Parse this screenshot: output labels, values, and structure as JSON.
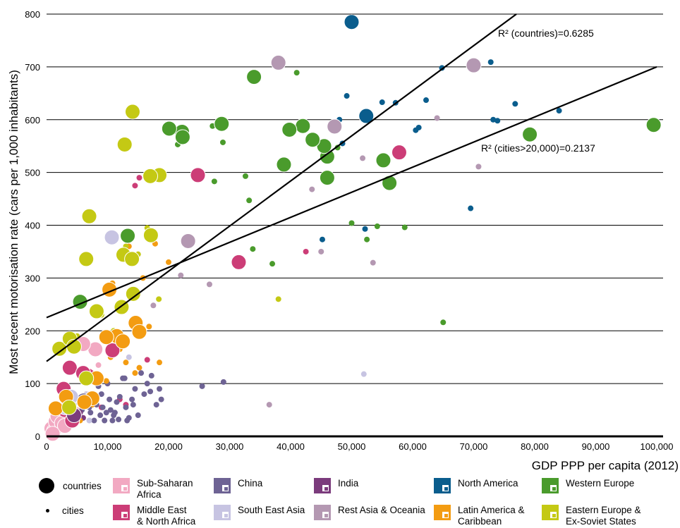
{
  "chart_data": {
    "type": "scatter",
    "xlabel": "GDP PPP per capita (2012)",
    "ylabel": "Most recent motorisation rate (cars per 1,000 inhabitants)",
    "xlim": [
      0,
      100000
    ],
    "ylim": [
      0,
      800
    ],
    "x_ticks": [
      "0",
      "10,000",
      "20,000",
      "30,000",
      "40,000",
      "50,000",
      "60,000",
      "70,000",
      "80,000",
      "90,000",
      "100,000"
    ],
    "y_ticks": [
      "0",
      "100",
      "200",
      "300",
      "400",
      "500",
      "600",
      "700",
      "800"
    ],
    "grid": "horizontal",
    "trendlines": [
      {
        "name": "countries",
        "label": "R² (countries)=0.6285",
        "points": [
          [
            0,
            142
          ],
          [
            77000,
            800
          ]
        ]
      },
      {
        "name": "cities",
        "label": "R² (cities>20,000)=0.2137",
        "points": [
          [
            0,
            225
          ],
          [
            100000,
            700
          ]
        ]
      }
    ],
    "series": [
      {
        "name": "Sub-Saharan Africa",
        "color": "#f2a9c2",
        "countries": [
          [
            800,
            15
          ],
          [
            1200,
            10
          ],
          [
            1500,
            28
          ],
          [
            1800,
            38
          ],
          [
            2500,
            25
          ],
          [
            8000,
            165
          ],
          [
            6000,
            175
          ],
          [
            3000,
            20
          ],
          [
            1000,
            5
          ]
        ],
        "cities": [
          [
            2000,
            30
          ],
          [
            3000,
            45
          ],
          [
            4000,
            35
          ],
          [
            5000,
            50
          ],
          [
            2500,
            15
          ],
          [
            6000,
            60
          ],
          [
            8500,
            135
          ],
          [
            7000,
            80
          ],
          [
            1500,
            8
          ],
          [
            3500,
            22
          ]
        ]
      },
      {
        "name": "Middle East & North Africa",
        "color": "#cc3d77",
        "countries": [
          [
            4000,
            177
          ],
          [
            3800,
            130
          ],
          [
            2800,
            90
          ],
          [
            3000,
            50
          ],
          [
            4200,
            30
          ],
          [
            6800,
            115
          ],
          [
            10800,
            163
          ],
          [
            24800,
            495
          ],
          [
            31500,
            330
          ],
          [
            57800,
            538
          ],
          [
            6000,
            120
          ]
        ],
        "cities": [
          [
            14500,
            475
          ],
          [
            15200,
            490
          ],
          [
            16500,
            145
          ],
          [
            42500,
            350
          ],
          [
            9000,
            55
          ],
          [
            13000,
            60
          ],
          [
            12000,
            70
          ]
        ]
      },
      {
        "name": "China",
        "color": "#6e6394",
        "countries": [
          [
            6100,
            68
          ]
        ],
        "cities": [
          [
            3200,
            40
          ],
          [
            4000,
            55
          ],
          [
            4500,
            62
          ],
          [
            5200,
            40
          ],
          [
            5800,
            50
          ],
          [
            6500,
            70
          ],
          [
            7200,
            45
          ],
          [
            7800,
            30
          ],
          [
            8200,
            60
          ],
          [
            9000,
            80
          ],
          [
            9500,
            30
          ],
          [
            10000,
            100
          ],
          [
            10500,
            50
          ],
          [
            11000,
            40
          ],
          [
            11500,
            65
          ],
          [
            12000,
            75
          ],
          [
            12500,
            110
          ],
          [
            13000,
            55
          ],
          [
            13500,
            35
          ],
          [
            14000,
            70
          ],
          [
            14500,
            90
          ],
          [
            15000,
            40
          ],
          [
            15500,
            120
          ],
          [
            16000,
            80
          ],
          [
            16500,
            100
          ],
          [
            17000,
            85
          ],
          [
            17200,
            115
          ],
          [
            18000,
            60
          ],
          [
            18500,
            90
          ],
          [
            18800,
            70
          ],
          [
            8500,
            95
          ],
          [
            9200,
            55
          ],
          [
            10800,
            30
          ],
          [
            11800,
            32
          ],
          [
            12800,
            110
          ],
          [
            25500,
            95
          ],
          [
            29000,
            103
          ],
          [
            3700,
            30
          ],
          [
            5500,
            35
          ],
          [
            7000,
            55
          ],
          [
            8800,
            40
          ],
          [
            9800,
            45
          ],
          [
            10300,
            70
          ],
          [
            11200,
            45
          ],
          [
            13200,
            30
          ],
          [
            14200,
            60
          ]
        ]
      },
      {
        "name": "India",
        "color": "#7b3b7c",
        "countries": [
          [
            4500,
            40
          ]
        ],
        "cities": [
          [
            4000,
            25
          ],
          [
            5000,
            30
          ],
          [
            5500,
            45
          ],
          [
            6000,
            35
          ]
        ]
      },
      {
        "name": "South East Asia",
        "color": "#c7c4e2",
        "countries": [
          [
            10700,
            377
          ],
          [
            4000,
            75
          ],
          [
            3000,
            55
          ]
        ],
        "cities": [
          [
            13500,
            150
          ],
          [
            6500,
            80
          ],
          [
            52000,
            118
          ],
          [
            7000,
            30
          ],
          [
            5000,
            65
          ]
        ]
      },
      {
        "name": "Rest Asia & Oceania",
        "color": "#b498b2",
        "countries": [
          [
            38000,
            708
          ],
          [
            70000,
            703
          ],
          [
            47200,
            587
          ],
          [
            23200,
            370
          ]
        ],
        "cities": [
          [
            26700,
            288
          ],
          [
            22000,
            305
          ],
          [
            17500,
            248
          ],
          [
            36500,
            60
          ],
          [
            43500,
            468
          ],
          [
            45000,
            350
          ],
          [
            51800,
            527
          ],
          [
            53500,
            329
          ],
          [
            64000,
            603
          ],
          [
            70800,
            511
          ],
          [
            13000,
            248
          ]
        ]
      },
      {
        "name": "Latin America & Caribbean",
        "color": "#f39c12",
        "countries": [
          [
            10300,
            278
          ],
          [
            14600,
            215
          ],
          [
            15200,
            198
          ],
          [
            11500,
            190
          ],
          [
            9800,
            188
          ],
          [
            8200,
            110
          ],
          [
            7500,
            72
          ],
          [
            6200,
            65
          ],
          [
            3200,
            75
          ],
          [
            1500,
            53
          ],
          [
            12500,
            180
          ]
        ],
        "cities": [
          [
            10800,
            290
          ],
          [
            13500,
            360
          ],
          [
            17800,
            365
          ],
          [
            20000,
            330
          ],
          [
            15800,
            300
          ],
          [
            16800,
            208
          ],
          [
            15200,
            130
          ],
          [
            18500,
            140
          ],
          [
            10500,
            150
          ],
          [
            12000,
            165
          ],
          [
            9800,
            105
          ],
          [
            7500,
            60
          ],
          [
            5500,
            30
          ],
          [
            14500,
            120
          ],
          [
            13000,
            140
          ]
        ]
      },
      {
        "name": "North America",
        "color": "#0a5d8d",
        "countries": [
          [
            50000,
            785
          ],
          [
            52400,
            607
          ]
        ],
        "cities": [
          [
            64800,
            698
          ],
          [
            72800,
            709
          ],
          [
            69500,
            432
          ],
          [
            76800,
            630
          ],
          [
            73200,
            600
          ],
          [
            84000,
            617
          ],
          [
            62200,
            637
          ],
          [
            60500,
            580
          ],
          [
            61000,
            585
          ],
          [
            57200,
            632
          ],
          [
            55000,
            633
          ],
          [
            49200,
            645
          ],
          [
            48000,
            600
          ],
          [
            48500,
            555
          ],
          [
            52200,
            393
          ],
          [
            45200,
            373
          ],
          [
            73900,
            598
          ]
        ]
      },
      {
        "name": "Western Europe",
        "color": "#4a9b2c",
        "countries": [
          [
            99500,
            590
          ],
          [
            79200,
            572
          ],
          [
            56200,
            480
          ],
          [
            55200,
            523
          ],
          [
            46000,
            490
          ],
          [
            46000,
            530
          ],
          [
            45500,
            550
          ],
          [
            43600,
            562
          ],
          [
            42000,
            588
          ],
          [
            39800,
            581
          ],
          [
            38900,
            515
          ],
          [
            34000,
            681
          ],
          [
            28700,
            592
          ],
          [
            22200,
            577
          ],
          [
            22300,
            567
          ],
          [
            20100,
            583
          ],
          [
            13300,
            380
          ],
          [
            5500,
            255
          ]
        ],
        "cities": [
          [
            41000,
            689
          ],
          [
            27200,
            588
          ],
          [
            21500,
            553
          ],
          [
            28900,
            557
          ],
          [
            32600,
            493
          ],
          [
            27500,
            483
          ],
          [
            33200,
            447
          ],
          [
            50000,
            404
          ],
          [
            54200,
            398
          ],
          [
            58700,
            396
          ],
          [
            52500,
            373
          ],
          [
            33800,
            355
          ],
          [
            37000,
            327
          ],
          [
            65000,
            216
          ],
          [
            47700,
            547
          ]
        ]
      },
      {
        "name": "Eastern Europe & Ex-Soviet States",
        "color": "#c4c914",
        "countries": [
          [
            14100,
            615
          ],
          [
            12800,
            553
          ],
          [
            18500,
            495
          ],
          [
            17000,
            493
          ],
          [
            7000,
            417
          ],
          [
            17100,
            381
          ],
          [
            12600,
            344
          ],
          [
            14000,
            336
          ],
          [
            6500,
            336
          ],
          [
            14200,
            270
          ],
          [
            8200,
            237
          ],
          [
            12300,
            245
          ],
          [
            2100,
            166
          ],
          [
            3800,
            185
          ],
          [
            4500,
            170
          ],
          [
            6500,
            110
          ],
          [
            3700,
            55
          ]
        ],
        "cities": [
          [
            38000,
            260
          ],
          [
            18400,
            260
          ],
          [
            16500,
            395
          ],
          [
            13000,
            360
          ],
          [
            15000,
            345
          ],
          [
            9000,
            230
          ],
          [
            5000,
            190
          ],
          [
            11000,
            200
          ]
        ]
      }
    ]
  },
  "legend": {
    "countries": "countries",
    "cities": "cities",
    "items": [
      "Sub-Saharan\nAfrica",
      "Middle East\n& North Africa",
      "China",
      "South East Asia",
      "India",
      "Rest Asia & Oceania",
      "North America",
      "Latin America &\nCaribbean",
      "Western Europe",
      "Eastern Europe &\nEx-Soviet States"
    ]
  }
}
